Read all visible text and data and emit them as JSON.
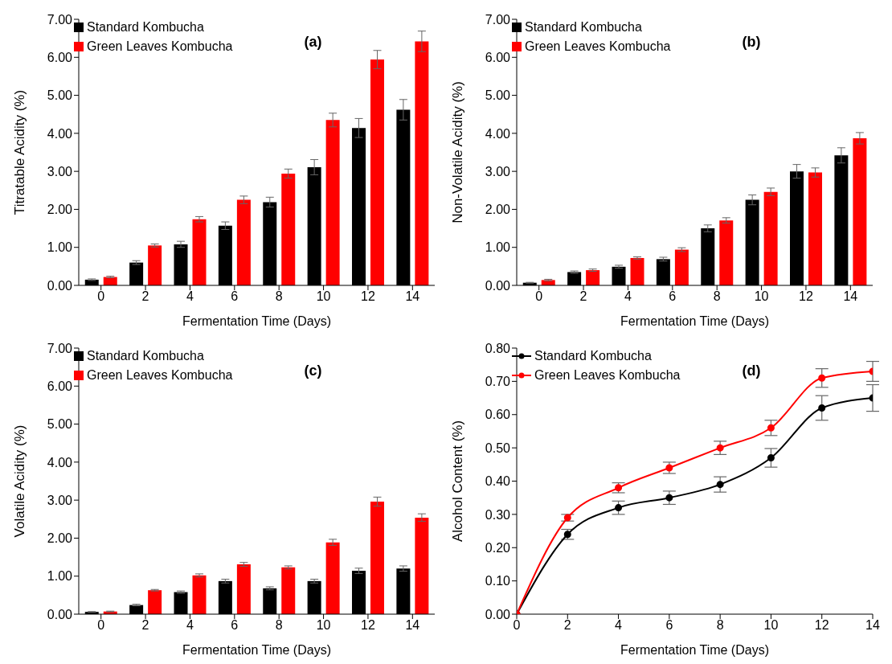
{
  "chart_data": [
    {
      "type": "bar",
      "annotations": [
        "(a)"
      ],
      "xlabel": "Fermentation Time (Days)",
      "ylabel": "Titratable Acidity (%)",
      "categories": [
        "0",
        "2",
        "4",
        "6",
        "8",
        "10",
        "12",
        "14"
      ],
      "series": [
        {
          "name": "Standard Kombucha",
          "color": "#000000",
          "values": [
            0.15,
            0.6,
            1.08,
            1.57,
            2.19,
            3.11,
            4.14,
            4.62
          ],
          "errors": [
            0.02,
            0.05,
            0.08,
            0.1,
            0.13,
            0.2,
            0.25,
            0.27
          ]
        },
        {
          "name": "Green Leaves Kombucha",
          "color": "#ff0000",
          "values": [
            0.22,
            1.05,
            1.74,
            2.25,
            2.94,
            4.35,
            5.94,
            6.42
          ],
          "errors": [
            0.02,
            0.04,
            0.07,
            0.1,
            0.12,
            0.18,
            0.24,
            0.27
          ]
        }
      ],
      "ylim": [
        0,
        7
      ],
      "yticks": [
        {
          "value": 0,
          "label": "0.00"
        },
        {
          "value": 1,
          "label": "1.00"
        },
        {
          "value": 2,
          "label": "2.00"
        },
        {
          "value": 3,
          "label": "3.00"
        },
        {
          "value": 4,
          "label": "4.00"
        },
        {
          "value": 5,
          "label": "5.00"
        },
        {
          "value": 6,
          "label": "6.00"
        },
        {
          "value": 7,
          "label": "7.00"
        }
      ],
      "legend": "top left"
    },
    {
      "type": "bar",
      "annotations": [
        "(b)"
      ],
      "xlabel": "Fermentation Time (Days)",
      "ylabel": "Non-Volatile Acidity (%)",
      "categories": [
        "0",
        "2",
        "4",
        "6",
        "8",
        "10",
        "12",
        "14"
      ],
      "series": [
        {
          "name": "Standard Kombucha",
          "color": "#000000",
          "values": [
            0.07,
            0.35,
            0.49,
            0.69,
            1.5,
            2.25,
            3.0,
            3.42
          ],
          "errors": [
            0.01,
            0.03,
            0.04,
            0.05,
            0.09,
            0.13,
            0.18,
            0.2
          ]
        },
        {
          "name": "Green Leaves Kombucha",
          "color": "#ff0000",
          "values": [
            0.14,
            0.4,
            0.72,
            0.94,
            1.71,
            2.46,
            2.97,
            3.87
          ],
          "errors": [
            0.02,
            0.03,
            0.03,
            0.05,
            0.07,
            0.1,
            0.12,
            0.15
          ]
        }
      ],
      "ylim": [
        0,
        7
      ],
      "yticks": [
        {
          "value": 0,
          "label": "0.00"
        },
        {
          "value": 1,
          "label": "1.00"
        },
        {
          "value": 2,
          "label": "2.00"
        },
        {
          "value": 3,
          "label": "3.00"
        },
        {
          "value": 4,
          "label": "4.00"
        },
        {
          "value": 5,
          "label": "5.00"
        },
        {
          "value": 6,
          "label": "6.00"
        },
        {
          "value": 7,
          "label": "7.00"
        }
      ],
      "legend": "top left"
    },
    {
      "type": "bar",
      "annotations": [
        "(c)"
      ],
      "xlabel": "Fermentation Time (Days)",
      "ylabel": "Volatile Acidity (%)",
      "categories": [
        "0",
        "2",
        "4",
        "6",
        "8",
        "10",
        "12",
        "14"
      ],
      "series": [
        {
          "name": "Standard Kombucha",
          "color": "#000000",
          "values": [
            0.06,
            0.24,
            0.58,
            0.87,
            0.68,
            0.87,
            1.14,
            1.2
          ],
          "errors": [
            0.01,
            0.02,
            0.03,
            0.05,
            0.04,
            0.05,
            0.07,
            0.07
          ]
        },
        {
          "name": "Green Leaves Kombucha",
          "color": "#ff0000",
          "values": [
            0.07,
            0.63,
            1.02,
            1.31,
            1.23,
            1.89,
            2.96,
            2.54
          ],
          "errors": [
            0.01,
            0.02,
            0.04,
            0.05,
            0.04,
            0.08,
            0.12,
            0.1
          ]
        }
      ],
      "ylim": [
        0,
        7
      ],
      "yticks": [
        {
          "value": 0,
          "label": "0.00"
        },
        {
          "value": 1,
          "label": "1.00"
        },
        {
          "value": 2,
          "label": "2.00"
        },
        {
          "value": 3,
          "label": "3.00"
        },
        {
          "value": 4,
          "label": "4.00"
        },
        {
          "value": 5,
          "label": "5.00"
        },
        {
          "value": 6,
          "label": "6.00"
        },
        {
          "value": 7,
          "label": "7.00"
        }
      ],
      "legend": "top left"
    },
    {
      "type": "line",
      "annotations": [
        "(d)"
      ],
      "xlabel": "Fermentation Time (Days)",
      "ylabel": "Alcohol Content (%)",
      "x": [
        0,
        2,
        4,
        6,
        8,
        10,
        12,
        14
      ],
      "series": [
        {
          "name": "Standard Kombucha",
          "color": "#000000",
          "values": [
            0,
            0.24,
            0.32,
            0.35,
            0.39,
            0.47,
            0.62,
            0.65
          ],
          "errors": [
            0,
            0.015,
            0.02,
            0.02,
            0.023,
            0.028,
            0.037,
            0.04
          ]
        },
        {
          "name": "Green Leaves Kombucha",
          "color": "#ff0000",
          "values": [
            0,
            0.29,
            0.38,
            0.44,
            0.5,
            0.56,
            0.71,
            0.73
          ],
          "errors": [
            0,
            0.01,
            0.015,
            0.017,
            0.02,
            0.023,
            0.028,
            0.03
          ]
        }
      ],
      "xlim": [
        0,
        14
      ],
      "xticks": [
        0,
        2,
        4,
        6,
        8,
        10,
        12,
        14
      ],
      "ylim": [
        0,
        0.8
      ],
      "yticks": [
        {
          "value": 0,
          "label": "0.00"
        },
        {
          "value": 0.1,
          "label": "0.10"
        },
        {
          "value": 0.2,
          "label": "0.20"
        },
        {
          "value": 0.3,
          "label": "0.30"
        },
        {
          "value": 0.4,
          "label": "0.40"
        },
        {
          "value": 0.5,
          "label": "0.50"
        },
        {
          "value": 0.6,
          "label": "0.60"
        },
        {
          "value": 0.7,
          "label": "0.70"
        },
        {
          "value": 0.8,
          "label": "0.80"
        }
      ],
      "legend": "top left",
      "marker": "circle",
      "line_style": "solid"
    }
  ]
}
